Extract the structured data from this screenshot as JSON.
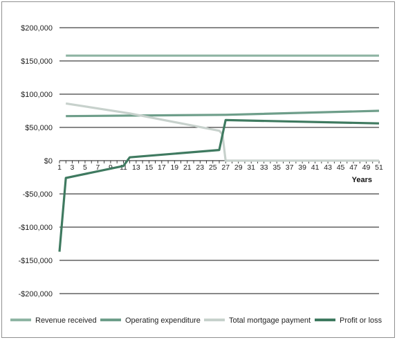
{
  "chart_data": {
    "type": "line",
    "xlabel": "Years",
    "ylabel": "",
    "title": "",
    "ylim": [
      -200000,
      200000
    ],
    "y_ticks": [
      200000,
      150000,
      100000,
      50000,
      0,
      -50000,
      -100000,
      -150000,
      -200000
    ],
    "y_tick_labels": [
      "$200,000",
      "$150,000",
      "$100,000",
      "$50,000",
      "$0",
      "-$50,000",
      "-$100,000",
      "-$150,000",
      "-$200,000"
    ],
    "x_range": [
      1,
      51
    ],
    "x_tick_labels": [
      "1",
      "3",
      "5",
      "7",
      "9",
      "11",
      "13",
      "15",
      "17",
      "19",
      "21",
      "23",
      "25",
      "27",
      "29",
      "31",
      "33",
      "35",
      "37",
      "39",
      "41",
      "43",
      "45",
      "47",
      "49",
      "51"
    ],
    "grid": true,
    "legend_position": "bottom",
    "series": [
      {
        "name": "Revenue received",
        "color": "#8fb5a4",
        "points": [
          [
            2,
            158000
          ],
          [
            51,
            158000
          ]
        ]
      },
      {
        "name": "Operating expenditure",
        "color": "#6e9e8a",
        "points": [
          [
            2,
            67000
          ],
          [
            27,
            69000
          ],
          [
            51,
            75000
          ]
        ]
      },
      {
        "name": "Total mortgage payment",
        "color": "#c7d1cc",
        "points": [
          [
            2,
            86000
          ],
          [
            12,
            71000
          ],
          [
            26,
            45000
          ],
          [
            26.5,
            40000
          ],
          [
            27,
            0
          ],
          [
            51,
            0
          ]
        ]
      },
      {
        "name": "Profit or loss",
        "color": "#3f7a60",
        "points": [
          [
            1,
            -137000
          ],
          [
            2,
            -26000
          ],
          [
            11,
            -8000
          ],
          [
            12,
            5000
          ],
          [
            26,
            16000
          ],
          [
            27,
            61000
          ],
          [
            51,
            56000
          ]
        ]
      }
    ]
  }
}
